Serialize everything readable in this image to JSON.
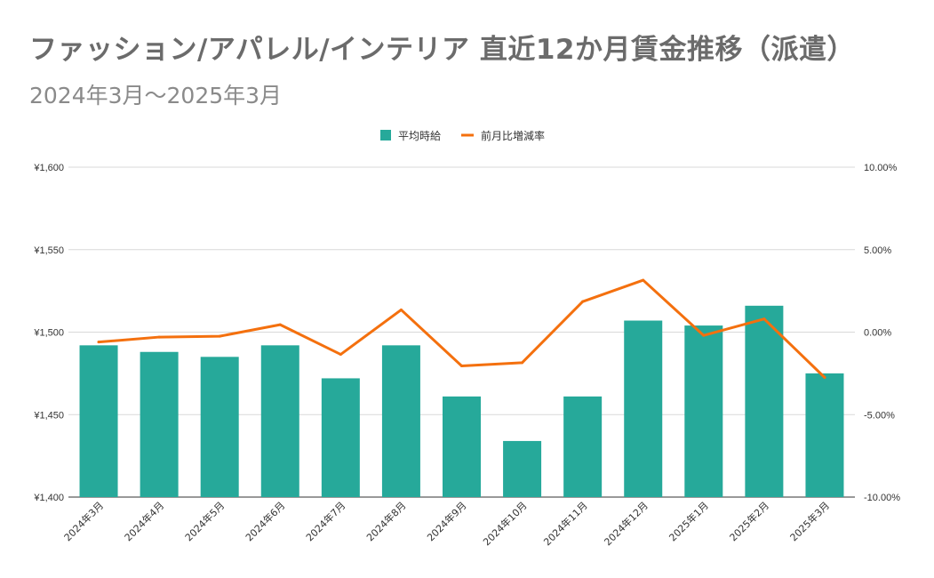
{
  "title": "ファッション/アパレル/インテリア 直近12か月賃金推移（派遣）",
  "subtitle": "2024年3月～2025年3月",
  "colors": {
    "bar": "#26a99a",
    "line": "#f4700e",
    "grid": "#d9d9d9",
    "text": "#333333"
  },
  "chart_data": {
    "type": "bar",
    "categories": [
      "2024年3月",
      "2024年4月",
      "2024年5月",
      "2024年6月",
      "2024年7月",
      "2024年8月",
      "2024年9月",
      "2024年10月",
      "2024年11月",
      "2024年12月",
      "2025年1月",
      "2025年2月",
      "2025年3月"
    ],
    "series": [
      {
        "name": "平均時給",
        "type": "bar",
        "axis": "left",
        "values": [
          1492,
          1488,
          1485,
          1492,
          1472,
          1492,
          1461,
          1434,
          1461,
          1507,
          1504,
          1516,
          1475
        ]
      },
      {
        "name": "前月比増減率",
        "type": "line",
        "axis": "right",
        "values": [
          -0.6,
          -0.3,
          -0.25,
          0.45,
          -1.35,
          1.35,
          -2.05,
          -1.85,
          1.85,
          3.15,
          -0.2,
          0.8,
          -2.75
        ]
      }
    ],
    "ylim": [
      1400,
      1600
    ],
    "y2lim": [
      -10,
      10
    ],
    "yticks": [
      "¥1,400",
      "¥1,450",
      "¥1,500",
      "¥1,550",
      "¥1,600"
    ],
    "y2ticks": [
      "-10.00%",
      "-5.00%",
      "0.00%",
      "5.00%",
      "10.00%"
    ],
    "legend": [
      "平均時給",
      "前月比増減率"
    ],
    "legend_position": "top-center",
    "grid": true
  }
}
